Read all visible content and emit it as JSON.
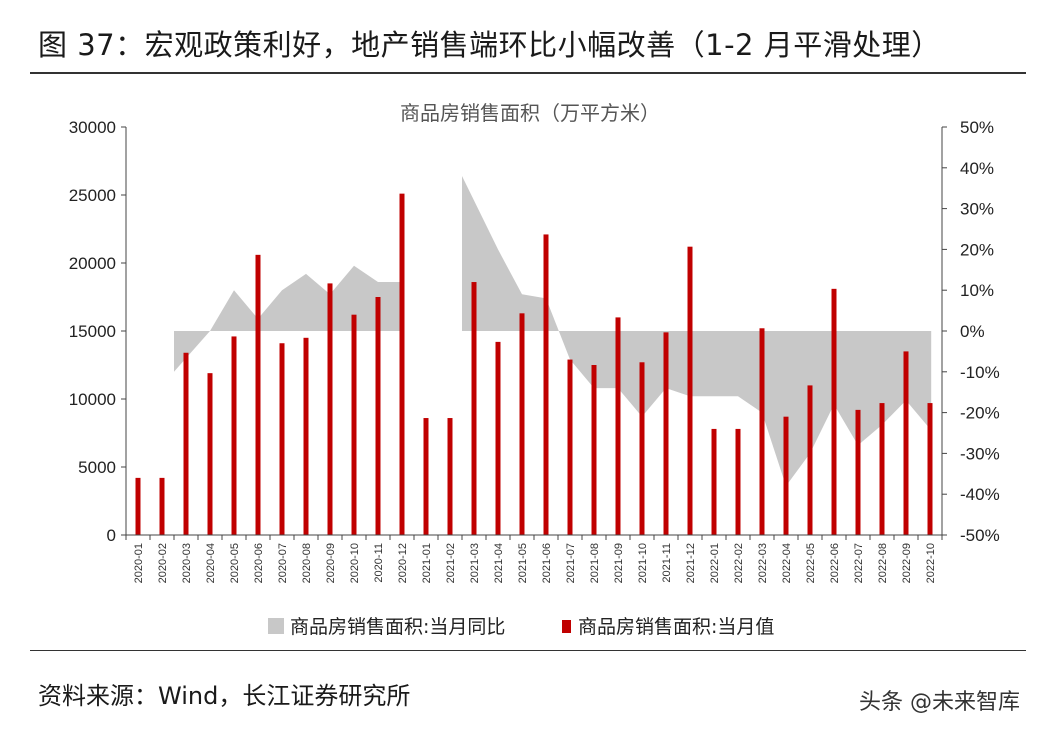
{
  "figure": {
    "title": "图 37：宏观政策利好，地产销售端环比小幅改善（1-2 月平滑处理）",
    "source": "资料来源：Wind，长江证券研究所",
    "watermark": "头条 @未来智库"
  },
  "chart_data": {
    "type": "bar",
    "title": "商品房销售面积（万平方米）",
    "categories": [
      "2020-01",
      "2020-02",
      "2020-03",
      "2020-04",
      "2020-05",
      "2020-06",
      "2020-07",
      "2020-08",
      "2020-09",
      "2020-10",
      "2020-11",
      "2020-12",
      "2021-01",
      "2021-02",
      "2021-03",
      "2021-04",
      "2021-05",
      "2021-06",
      "2021-07",
      "2021-08",
      "2021-09",
      "2021-10",
      "2021-11",
      "2021-12",
      "2022-01",
      "2022-02",
      "2022-03",
      "2022-04",
      "2022-05",
      "2022-06",
      "2022-07",
      "2022-08",
      "2022-09",
      "2022-10"
    ],
    "y_left": {
      "ylim": [
        0,
        30000
      ],
      "ticks": [
        "0",
        "5000",
        "10000",
        "15000",
        "20000",
        "25000",
        "30000"
      ]
    },
    "y_right": {
      "ylim": [
        -50,
        50
      ],
      "ticks": [
        "-50%",
        "-40%",
        "-30%",
        "-20%",
        "-10%",
        "0%",
        "10%",
        "20%",
        "30%",
        "40%",
        "50%"
      ]
    },
    "series": [
      {
        "name": "商品房销售面积:当月同比",
        "type": "area",
        "axis": "right",
        "color": "#c8c8c8",
        "values": [
          null,
          null,
          -10,
          0,
          10,
          3,
          10,
          14,
          9,
          16,
          12,
          12,
          null,
          null,
          38,
          20,
          9,
          8,
          -7,
          -14,
          -14,
          -21,
          -14,
          -16,
          -16,
          -16,
          -20,
          -38,
          -30,
          -18,
          -28,
          -23,
          -17,
          -24
        ]
      },
      {
        "name": "商品房销售面积:当月值",
        "type": "bar",
        "axis": "left",
        "color": "#c00000",
        "values": [
          4200,
          4200,
          13400,
          11900,
          14600,
          20600,
          14100,
          14500,
          18500,
          16200,
          17500,
          25100,
          8600,
          8600,
          18600,
          14200,
          16300,
          22100,
          12900,
          12500,
          16000,
          12700,
          14900,
          21200,
          7800,
          7800,
          15200,
          8700,
          11000,
          18100,
          9200,
          9700,
          13500,
          9700
        ]
      }
    ],
    "legend_position": "bottom"
  }
}
